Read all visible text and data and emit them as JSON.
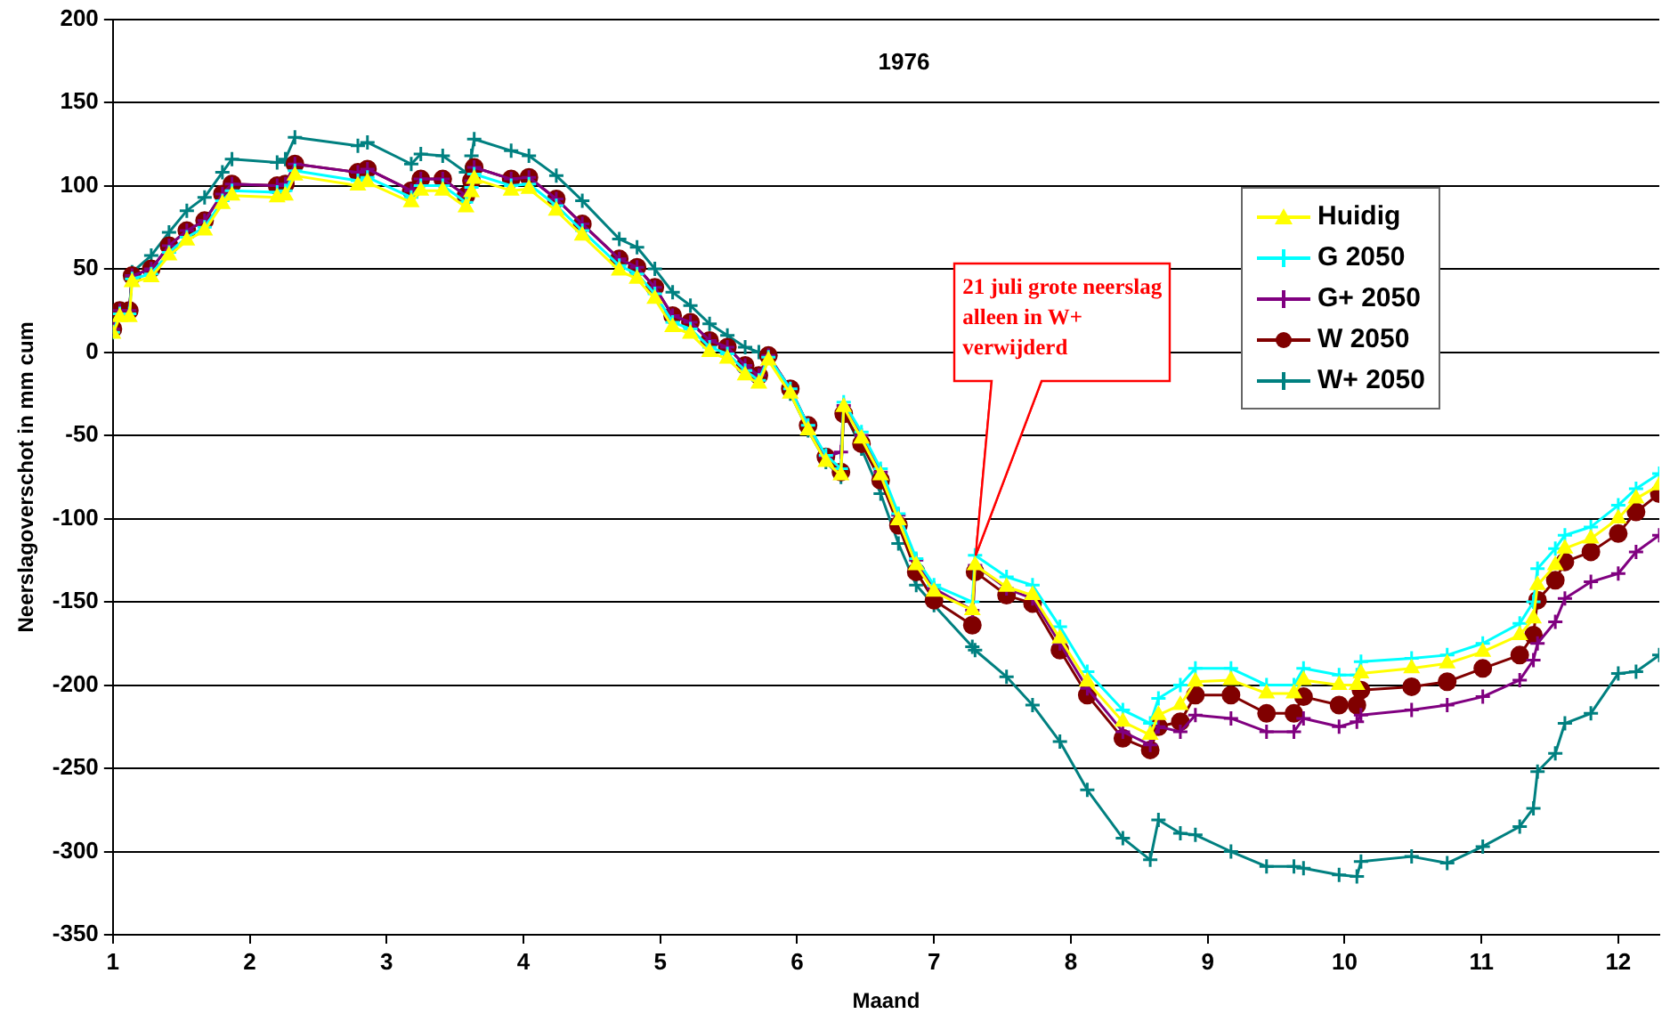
{
  "chart_data": {
    "type": "line",
    "title": "1976",
    "xlabel": "Maand",
    "ylabel": "Neerslagoverschot in mm cum",
    "x": [
      1.0,
      1.05,
      1.12,
      1.14,
      1.28,
      1.41,
      1.54,
      1.67,
      1.8,
      1.87,
      2.2,
      2.26,
      2.33,
      2.79,
      2.86,
      3.18,
      3.25,
      3.41,
      3.58,
      3.62,
      3.64,
      3.91,
      4.04,
      4.24,
      4.43,
      4.7,
      4.83,
      4.96,
      5.09,
      5.22,
      5.36,
      5.49,
      5.62,
      5.72,
      5.79,
      5.95,
      6.08,
      6.21,
      6.32,
      6.34,
      6.47,
      6.61,
      6.74,
      6.87,
      7.0,
      7.28,
      7.3,
      7.53,
      7.72,
      7.92,
      8.12,
      8.38,
      8.58,
      8.64,
      8.8,
      8.91,
      9.17,
      9.43,
      9.63,
      9.7,
      9.96,
      10.09,
      10.12,
      10.49,
      10.75,
      11.01,
      11.28,
      11.38,
      11.41,
      11.54,
      11.61,
      11.8,
      12.0,
      12.13,
      12.3
    ],
    "series": [
      {
        "name": "Huidig",
        "color": "#ffff00",
        "marker": "triangle",
        "values": [
          11,
          21,
          21,
          42,
          45,
          58,
          67,
          73,
          89,
          94,
          93,
          94,
          106,
          100,
          102,
          90,
          97,
          97,
          87,
          96,
          104,
          97,
          98,
          85,
          70,
          49,
          44,
          32,
          15,
          11,
          0,
          -4,
          -14,
          -19,
          -5,
          -25,
          -47,
          -66,
          -74,
          -33,
          -52,
          -74,
          -101,
          -128,
          -144,
          -155,
          -128,
          -141,
          -146,
          -172,
          -198,
          -222,
          -230,
          -218,
          -212,
          -198,
          -197,
          -205,
          -205,
          -197,
          -200,
          -200,
          -193,
          -190,
          -187,
          -180,
          -170,
          -160,
          -140,
          -128,
          -118,
          -112,
          -100,
          -88,
          -80
        ]
      },
      {
        "name": "G 2050",
        "color": "#00ffff",
        "marker": "cross",
        "values": [
          12,
          23,
          23,
          44,
          47,
          60,
          69,
          75,
          91,
          97,
          96,
          97,
          109,
          103,
          105,
          93,
          100,
          100,
          90,
          99,
          107,
          100,
          101,
          88,
          73,
          52,
          47,
          35,
          18,
          14,
          3,
          -1,
          -11,
          -17,
          -3,
          -22,
          -44,
          -62,
          -70,
          -30,
          -48,
          -70,
          -97,
          -124,
          -140,
          -150,
          -122,
          -135,
          -140,
          -165,
          -192,
          -215,
          -223,
          -208,
          -200,
          -190,
          -190,
          -200,
          -200,
          -190,
          -194,
          -194,
          -186,
          -184,
          -182,
          -175,
          -163,
          -150,
          -130,
          -118,
          -110,
          -105,
          -92,
          -82,
          -73
        ]
      },
      {
        "name": "G+ 2050",
        "color": "#800080",
        "marker": "cross",
        "values": [
          14,
          25,
          25,
          46,
          50,
          64,
          73,
          79,
          95,
          101,
          100,
          101,
          113,
          108,
          110,
          97,
          104,
          104,
          94,
          103,
          111,
          104,
          105,
          92,
          77,
          56,
          51,
          39,
          22,
          18,
          7,
          3,
          -8,
          -14,
          -2,
          -22,
          -44,
          -63,
          -60,
          -32,
          -50,
          -72,
          -98,
          -125,
          -142,
          -155,
          -128,
          -142,
          -148,
          -175,
          -202,
          -228,
          -236,
          -225,
          -228,
          -218,
          -220,
          -228,
          -228,
          -220,
          -225,
          -222,
          -218,
          -215,
          -212,
          -207,
          -197,
          -185,
          -175,
          -162,
          -148,
          -138,
          -133,
          -120,
          -110
        ]
      },
      {
        "name": "W 2050",
        "color": "#800000",
        "marker": "circle",
        "values": [
          14,
          25,
          25,
          46,
          50,
          64,
          73,
          79,
          95,
          101,
          100,
          101,
          113,
          108,
          110,
          97,
          104,
          104,
          94,
          103,
          111,
          104,
          105,
          92,
          77,
          56,
          51,
          39,
          22,
          18,
          7,
          3,
          -8,
          -14,
          -2,
          -22,
          -44,
          -63,
          -72,
          -37,
          -55,
          -77,
          -104,
          -132,
          -149,
          -164,
          -132,
          -146,
          -151,
          -179,
          -206,
          -232,
          -239,
          -225,
          -222,
          -206,
          -206,
          -217,
          -217,
          -207,
          -212,
          -212,
          -203,
          -201,
          -198,
          -190,
          -182,
          -170,
          -149,
          -137,
          -126,
          -120,
          -109,
          -96,
          -85
        ]
      },
      {
        "name": "W+ 2050",
        "color": "#008080",
        "marker": "cross",
        "values": [
          14,
          25,
          25,
          48,
          58,
          72,
          85,
          93,
          108,
          116,
          114,
          116,
          129,
          124,
          126,
          113,
          119,
          118,
          108,
          118,
          128,
          121,
          118,
          106,
          91,
          68,
          63,
          50,
          36,
          28,
          17,
          10,
          3,
          0,
          -3,
          -25,
          -47,
          -66,
          -75,
          -35,
          -58,
          -85,
          -115,
          -140,
          -152,
          -177,
          -179,
          -195,
          -212,
          -234,
          -263,
          -292,
          -305,
          -281,
          -289,
          -290,
          -300,
          -309,
          -309,
          -310,
          -314,
          -315,
          -306,
          -303,
          -307,
          -297,
          -285,
          -274,
          -252,
          -241,
          -223,
          -217,
          -193,
          -192,
          -182
        ]
      }
    ],
    "xlim": [
      1,
      12.3
    ],
    "xticks": [
      1,
      2,
      3,
      4,
      5,
      6,
      7,
      8,
      9,
      10,
      11,
      12
    ],
    "ylim": [
      -350,
      200
    ],
    "yticks": [
      -350,
      -300,
      -250,
      -200,
      -150,
      -100,
      -50,
      0,
      50,
      100,
      150,
      200
    ],
    "grid": "y",
    "legend": "right",
    "annotations": [
      {
        "text": "21 juli grote neerslag alleen in W+ verwijderd",
        "x": 7.3,
        "y": -122
      }
    ]
  }
}
